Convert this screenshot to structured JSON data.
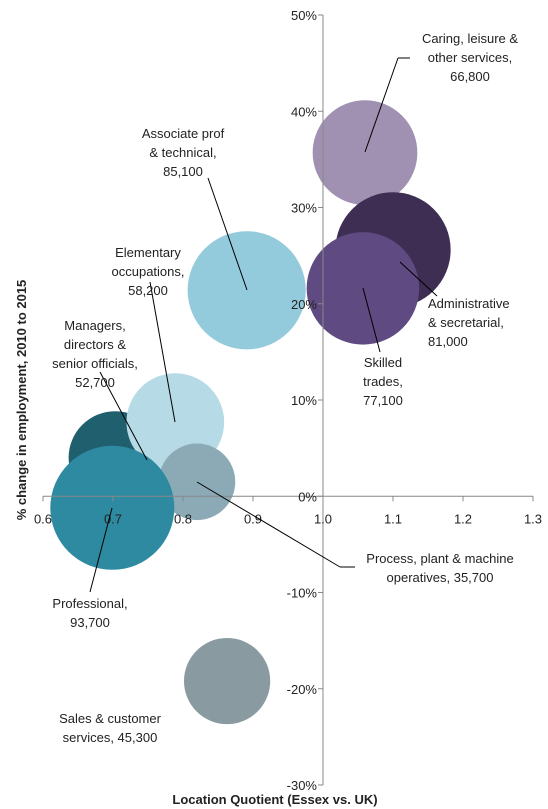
{
  "chart_data": {
    "type": "bubble",
    "x_label": "Location Quotient (Essex vs. UK)",
    "y_label": "% change in employment, 2010 to 2015",
    "xlim": [
      0.6,
      1.3
    ],
    "xticks": [
      0.6,
      0.7,
      0.8,
      0.9,
      {
        "value": 1,
        "label": "1.0"
      },
      1.1,
      1.2,
      1.3
    ],
    "ylim": [
      -30,
      50
    ],
    "yticks": [
      {
        "value": -30,
        "label": "-30%"
      },
      {
        "value": -20,
        "label": "-20%"
      },
      {
        "value": -10,
        "label": "-10%"
      },
      {
        "value": 0,
        "label": "0%"
      },
      {
        "value": 10,
        "label": "10%"
      },
      {
        "value": 20,
        "label": "20%"
      },
      {
        "value": 30,
        "label": "30%"
      },
      {
        "value": 40,
        "label": "40%"
      },
      {
        "value": 50,
        "label": "50%"
      }
    ],
    "series": [
      {
        "label": [
          "Caring, leisure &",
          "other services,",
          "66,800"
        ],
        "color": "#a090b2",
        "x": 1.06,
        "y": 35.7,
        "size": 66800
      },
      {
        "label": [
          "Administrative",
          "& secretarial,",
          "81,000"
        ],
        "color": "#3e2e54",
        "x": 1.1,
        "y": 25.6,
        "size": 81000
      },
      {
        "label": [
          "Skilled",
          "trades,",
          "77,100"
        ],
        "color": "#5f4a82",
        "x": 1.057,
        "y": 21.6,
        "size": 77100
      },
      {
        "label": [
          "Associate prof",
          "& technical,",
          "85,100"
        ],
        "color": "#93cbdc",
        "x": 0.891,
        "y": 21.4,
        "size": 85100
      },
      {
        "label": [
          "Managers,",
          "directors &",
          "senior officials,",
          "52,700"
        ],
        "color": "#1f5f6e",
        "x": 0.703,
        "y": 4.0,
        "size": 52700
      },
      {
        "label": [
          "Elementary",
          "occupations,",
          "58,200"
        ],
        "color": "#b6dbe6",
        "x": 0.789,
        "y": 7.7,
        "size": 58200
      },
      {
        "label": [
          "Process, plant & machine",
          "operatives, 35,700"
        ],
        "color": "#8caab6",
        "x": 0.82,
        "y": 1.5,
        "size": 35700
      },
      {
        "label": [
          "Professional,",
          "93,700"
        ],
        "color": "#2e8aa1",
        "x": 0.699,
        "y": -1.2,
        "size": 93700
      },
      {
        "label": [
          "Sales & customer",
          "services, 45,300"
        ],
        "color": "#8a9aa1",
        "x": 0.863,
        "y": -19.2,
        "size": 45300
      }
    ]
  }
}
